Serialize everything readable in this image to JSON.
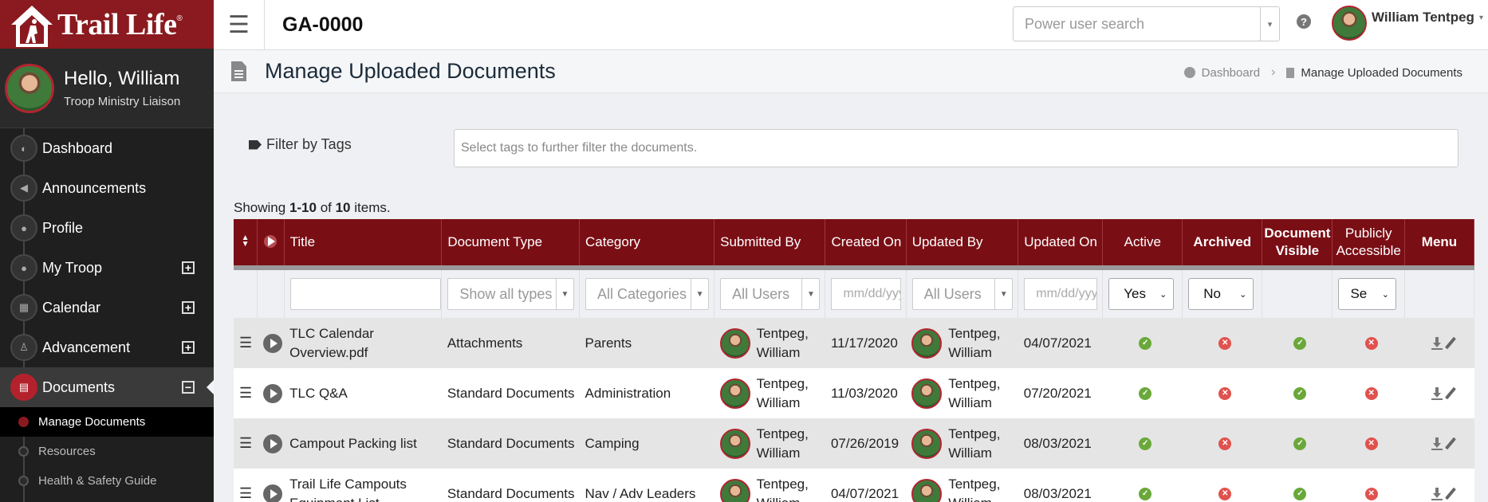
{
  "sidebar": {
    "logo_text": "Trail Life",
    "logo_reg": "®",
    "hello": "Hello, William",
    "role": "Troop Ministry Liaison",
    "nav": [
      {
        "label": "Dashboard",
        "icon": "dashboard-icon"
      },
      {
        "label": "Announcements",
        "icon": "megaphone-icon"
      },
      {
        "label": "Profile",
        "icon": "user-icon"
      },
      {
        "label": "My Troop",
        "icon": "users-icon",
        "expand": "+"
      },
      {
        "label": "Calendar",
        "icon": "calendar-icon",
        "expand": "+"
      },
      {
        "label": "Advancement",
        "icon": "hiker-icon",
        "expand": "+"
      },
      {
        "label": "Documents",
        "icon": "documents-icon",
        "expand": "−"
      }
    ],
    "sub_items": [
      "Manage Documents",
      "Resources",
      "Health & Safety Guide"
    ]
  },
  "topbar": {
    "menu_glyph": "☰",
    "unit": "GA-0000",
    "search_placeholder": "Power user search",
    "help": "?",
    "user_name": "William Tentpeg",
    "caret": "▾"
  },
  "page": {
    "title": "Manage Uploaded Documents",
    "breadcrumb_home": "Dashboard",
    "breadcrumb_sep": "›",
    "breadcrumb_current": "Manage Uploaded Documents"
  },
  "filter": {
    "label": "Filter by Tags",
    "placeholder": "Select tags to further filter the documents."
  },
  "summary": {
    "prefix": "Showing ",
    "range": "1-10",
    "mid": " of ",
    "total": "10",
    "suffix": " items."
  },
  "table": {
    "headers": {
      "title": "Title",
      "type": "Document Type",
      "category": "Category",
      "submitted": "Submitted By",
      "created": "Created On",
      "updated_by": "Updated By",
      "updated_on": "Updated On",
      "active": "Active",
      "archived": "Archived",
      "visible": "Document Visible",
      "public": "Publicly Accessible",
      "menu": "Menu"
    },
    "filters": {
      "type": "Show all types",
      "category": "All Categories",
      "submitted": "All Users",
      "created": "mm/dd/yyyy",
      "updated_by": "All Users",
      "updated_on": "mm/dd/yyyy",
      "active": "Yes",
      "archived": "No",
      "public": "Se"
    },
    "rows": [
      {
        "title": "TLC Calendar Overview.pdf",
        "type": "Attachments",
        "category": "Parents",
        "submitted": "Tentpeg, William",
        "created": "11/17/2020",
        "updated_by": "Tentpeg, William",
        "updated_on": "04/07/2021",
        "active": true,
        "archived": false,
        "visible": true,
        "public": false
      },
      {
        "title": "TLC Q&A",
        "type": "Standard Documents",
        "category": "Administration",
        "submitted": "Tentpeg, William",
        "created": "11/03/2020",
        "updated_by": "Tentpeg, William",
        "updated_on": "07/20/2021",
        "active": true,
        "archived": false,
        "visible": true,
        "public": false
      },
      {
        "title": "Campout Packing list",
        "type": "Standard Documents",
        "category": "Camping",
        "submitted": "Tentpeg, William",
        "created": "07/26/2019",
        "updated_by": "Tentpeg, William",
        "updated_on": "08/03/2021",
        "active": true,
        "archived": false,
        "visible": true,
        "public": false
      },
      {
        "title": "Trail Life Campouts Equipment List",
        "type": "Standard Documents",
        "category": "Nav / Adv Leaders",
        "submitted": "Tentpeg, William",
        "created": "04/07/2021",
        "updated_by": "Tentpeg, William",
        "updated_on": "08/03/2021",
        "active": true,
        "archived": false,
        "visible": true,
        "public": false
      }
    ]
  },
  "colors": {
    "brand_red": "#8a1a1f",
    "header_red": "#7a0e15",
    "ok_green": "#6aa83a",
    "no_red": "#e0524d"
  }
}
